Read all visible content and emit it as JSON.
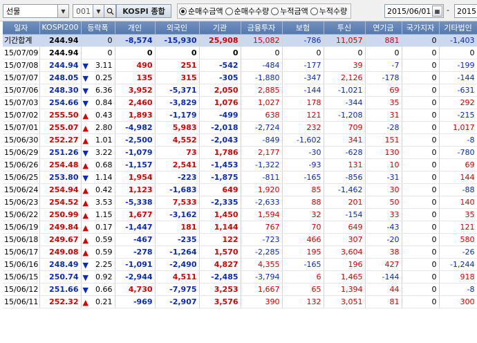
{
  "toolbar": {
    "kind_value": "선물",
    "code_value": "001",
    "market_label": "KOSPI 종합",
    "radios": [
      {
        "label": "순매수금액",
        "selected": true
      },
      {
        "label": "순매수수량",
        "selected": false
      },
      {
        "label": "누적금액",
        "selected": false
      },
      {
        "label": "누적수량",
        "selected": false
      }
    ],
    "date_from": "2015/06/01",
    "date_sep": "-",
    "date_to": "2015"
  },
  "columns": [
    "일자",
    "KOSPI200",
    "등락폭",
    "개인",
    "외국인",
    "기관",
    "금융투자",
    "보험",
    "투신",
    "연기금",
    "국가지자",
    "기타법인"
  ],
  "summary": {
    "date": "기간합계",
    "kospi": "244.94",
    "change": "0",
    "individual": "-8,574",
    "foreign": "-15,930",
    "institution": "25,908",
    "fin": "15,082",
    "insurance": "-786",
    "trust": "11,057",
    "pension": "881",
    "gov": "0",
    "corp": "-1,403"
  },
  "rows": [
    {
      "date": "15/07/09",
      "kospi": "244.94",
      "dir": "",
      "change": "0",
      "individual": "0",
      "foreign": "0",
      "institution": "0",
      "fin": "0",
      "insurance": "0",
      "trust": "0",
      "pension": "0",
      "gov": "0",
      "corp": "0"
    },
    {
      "date": "15/07/08",
      "kospi": "244.94",
      "dir": "down",
      "change": "3.11",
      "individual": "490",
      "foreign": "251",
      "institution": "-542",
      "fin": "-484",
      "insurance": "-177",
      "trust": "39",
      "pension": "-7",
      "gov": "0",
      "corp": "-199"
    },
    {
      "date": "15/07/07",
      "kospi": "248.05",
      "dir": "down",
      "change": "0.25",
      "individual": "135",
      "foreign": "315",
      "institution": "-305",
      "fin": "-1,880",
      "insurance": "-347",
      "trust": "2,126",
      "pension": "-178",
      "gov": "0",
      "corp": "-144"
    },
    {
      "date": "15/07/06",
      "kospi": "248.30",
      "dir": "down",
      "change": "6.36",
      "individual": "3,952",
      "foreign": "-5,371",
      "institution": "2,050",
      "fin": "2,885",
      "insurance": "-144",
      "trust": "-1,021",
      "pension": "69",
      "gov": "0",
      "corp": "-631"
    },
    {
      "date": "15/07/03",
      "kospi": "254.66",
      "dir": "down",
      "change": "0.84",
      "individual": "2,460",
      "foreign": "-3,829",
      "institution": "1,076",
      "fin": "1,027",
      "insurance": "178",
      "trust": "-344",
      "pension": "35",
      "gov": "0",
      "corp": "292"
    },
    {
      "date": "15/07/02",
      "kospi": "255.50",
      "dir": "up",
      "change": "0.43",
      "individual": "1,893",
      "foreign": "-1,179",
      "institution": "-499",
      "fin": "638",
      "insurance": "121",
      "trust": "-1,208",
      "pension": "31",
      "gov": "0",
      "corp": "-215"
    },
    {
      "date": "15/07/01",
      "kospi": "255.07",
      "dir": "up",
      "change": "2.80",
      "individual": "-4,982",
      "foreign": "5,983",
      "institution": "-2,018",
      "fin": "-2,724",
      "insurance": "232",
      "trust": "709",
      "pension": "-28",
      "gov": "0",
      "corp": "1,017"
    },
    {
      "date": "15/06/30",
      "kospi": "252.27",
      "dir": "up",
      "change": "1.01",
      "individual": "-2,500",
      "foreign": "4,552",
      "institution": "-2,043",
      "fin": "-849",
      "insurance": "-1,602",
      "trust": "341",
      "pension": "151",
      "gov": "0",
      "corp": "-8"
    },
    {
      "date": "15/06/29",
      "kospi": "251.26",
      "dir": "down",
      "change": "3.22",
      "individual": "-1,079",
      "foreign": "73",
      "institution": "1,786",
      "fin": "2,177",
      "insurance": "-30",
      "trust": "-628",
      "pension": "130",
      "gov": "0",
      "corp": "-780"
    },
    {
      "date": "15/06/26",
      "kospi": "254.48",
      "dir": "up",
      "change": "0.68",
      "individual": "-1,157",
      "foreign": "2,541",
      "institution": "-1,453",
      "fin": "-1,322",
      "insurance": "-93",
      "trust": "131",
      "pension": "10",
      "gov": "0",
      "corp": "69"
    },
    {
      "date": "15/06/25",
      "kospi": "253.80",
      "dir": "down",
      "change": "1.14",
      "individual": "1,954",
      "foreign": "-223",
      "institution": "-1,875",
      "fin": "-811",
      "insurance": "-165",
      "trust": "-856",
      "pension": "-31",
      "gov": "0",
      "corp": "144"
    },
    {
      "date": "15/06/24",
      "kospi": "254.94",
      "dir": "up",
      "change": "0.42",
      "individual": "1,123",
      "foreign": "-1,683",
      "institution": "649",
      "fin": "1,920",
      "insurance": "85",
      "trust": "-1,462",
      "pension": "30",
      "gov": "0",
      "corp": "-88"
    },
    {
      "date": "15/06/23",
      "kospi": "254.52",
      "dir": "up",
      "change": "3.53",
      "individual": "-5,338",
      "foreign": "7,533",
      "institution": "-2,335",
      "fin": "-2,633",
      "insurance": "88",
      "trust": "201",
      "pension": "50",
      "gov": "0",
      "corp": "140"
    },
    {
      "date": "15/06/22",
      "kospi": "250.99",
      "dir": "up",
      "change": "1.15",
      "individual": "1,677",
      "foreign": "-3,162",
      "institution": "1,450",
      "fin": "1,594",
      "insurance": "32",
      "trust": "-154",
      "pension": "33",
      "gov": "0",
      "corp": "35"
    },
    {
      "date": "15/06/19",
      "kospi": "249.84",
      "dir": "up",
      "change": "0.17",
      "individual": "-1,447",
      "foreign": "181",
      "institution": "1,144",
      "fin": "767",
      "insurance": "70",
      "trust": "649",
      "pension": "-43",
      "gov": "0",
      "corp": "121"
    },
    {
      "date": "15/06/18",
      "kospi": "249.67",
      "dir": "up",
      "change": "0.59",
      "individual": "-467",
      "foreign": "-235",
      "institution": "122",
      "fin": "-723",
      "insurance": "466",
      "trust": "307",
      "pension": "-20",
      "gov": "0",
      "corp": "580"
    },
    {
      "date": "15/06/17",
      "kospi": "249.08",
      "dir": "up",
      "change": "0.59",
      "individual": "-278",
      "foreign": "-1,264",
      "institution": "1,570",
      "fin": "-2,285",
      "insurance": "195",
      "trust": "3,604",
      "pension": "38",
      "gov": "0",
      "corp": "-26"
    },
    {
      "date": "15/06/16",
      "kospi": "248.49",
      "dir": "down",
      "change": "2.25",
      "individual": "-1,091",
      "foreign": "-2,490",
      "institution": "4,827",
      "fin": "4,355",
      "insurance": "-165",
      "trust": "196",
      "pension": "427",
      "gov": "0",
      "corp": "-1,244"
    },
    {
      "date": "15/06/15",
      "kospi": "250.74",
      "dir": "down",
      "change": "0.92",
      "individual": "-2,944",
      "foreign": "4,511",
      "institution": "-2,485",
      "fin": "-3,794",
      "insurance": "6",
      "trust": "1,465",
      "pension": "-144",
      "gov": "0",
      "corp": "918"
    },
    {
      "date": "15/06/12",
      "kospi": "251.66",
      "dir": "down",
      "change": "0.66",
      "individual": "4,730",
      "foreign": "-7,975",
      "institution": "3,253",
      "fin": "1,667",
      "insurance": "65",
      "trust": "1,394",
      "pension": "44",
      "gov": "0",
      "corp": "-8"
    },
    {
      "date": "15/06/11",
      "kospi": "252.32",
      "dir": "up",
      "change": "0.21",
      "individual": "-969",
      "foreign": "-2,907",
      "institution": "3,576",
      "fin": "390",
      "insurance": "132",
      "trust": "3,051",
      "pension": "81",
      "gov": "0",
      "corp": "300"
    }
  ],
  "colors": {
    "up": "#d70000",
    "down": "#0a2ab8",
    "header": "#557aae",
    "summary_bg": "#ccd8ee"
  },
  "icons": {
    "dropdown": "chevron-down-icon",
    "search": "search-icon",
    "calendar": "calendar-icon",
    "up_marker": "triangle-up-icon",
    "down_marker": "triangle-down-icon"
  }
}
